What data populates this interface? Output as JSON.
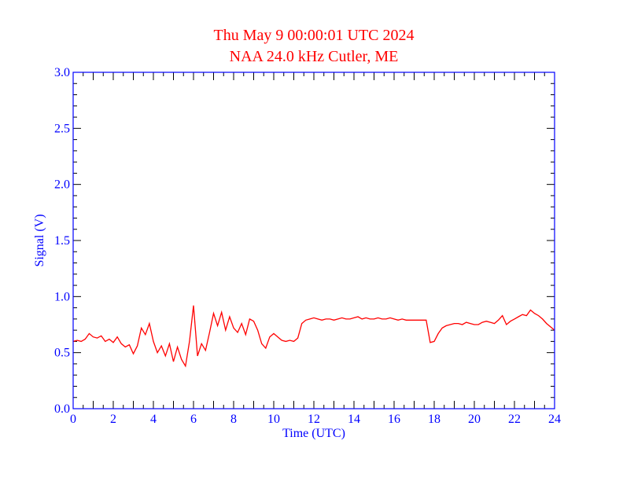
{
  "chart_data": {
    "type": "line",
    "title": "Thu May 9 00:00:01 UTC 2024",
    "subtitle": "NAA 24.0 kHz Cutler, ME",
    "xlabel": "Time (UTC)",
    "ylabel": "Signal (V)",
    "xlim": [
      0,
      24
    ],
    "ylim": [
      0,
      3.0
    ],
    "x_ticks": [
      "0",
      "2",
      "4",
      "6",
      "8",
      "10",
      "12",
      "14",
      "16",
      "18",
      "20",
      "22",
      "24"
    ],
    "y_ticks": [
      "0.0",
      "0.5",
      "1.0",
      "1.5",
      "2.0",
      "2.5",
      "3.0"
    ],
    "grid": false,
    "series": [
      {
        "name": "NAA 24.0 kHz",
        "color": "#ff0000",
        "x_start": 0,
        "x_step": 0.2,
        "values": [
          0.6,
          0.61,
          0.6,
          0.62,
          0.67,
          0.64,
          0.63,
          0.65,
          0.6,
          0.62,
          0.59,
          0.64,
          0.58,
          0.55,
          0.57,
          0.49,
          0.56,
          0.72,
          0.66,
          0.76,
          0.6,
          0.5,
          0.56,
          0.47,
          0.58,
          0.42,
          0.55,
          0.44,
          0.38,
          0.6,
          0.92,
          0.47,
          0.58,
          0.52,
          0.68,
          0.85,
          0.74,
          0.86,
          0.7,
          0.82,
          0.72,
          0.68,
          0.76,
          0.66,
          0.8,
          0.78,
          0.7,
          0.58,
          0.54,
          0.64,
          0.67,
          0.64,
          0.61,
          0.6,
          0.61,
          0.6,
          0.63,
          0.76,
          0.79,
          0.8,
          0.81,
          0.8,
          0.79,
          0.8,
          0.8,
          0.79,
          0.8,
          0.81,
          0.8,
          0.8,
          0.81,
          0.82,
          0.8,
          0.81,
          0.8,
          0.8,
          0.81,
          0.8,
          0.8,
          0.81,
          0.8,
          0.79,
          0.8,
          0.79,
          0.79,
          0.79,
          0.79,
          0.79,
          0.79,
          0.59,
          0.6,
          0.67,
          0.72,
          0.74,
          0.75,
          0.76,
          0.76,
          0.75,
          0.77,
          0.76,
          0.75,
          0.75,
          0.77,
          0.78,
          0.77,
          0.76,
          0.79,
          0.83,
          0.75,
          0.78,
          0.8,
          0.82,
          0.84,
          0.83,
          0.88,
          0.85,
          0.83,
          0.8,
          0.76,
          0.73,
          0.7
        ]
      }
    ],
    "colors": {
      "title": "#ff0000",
      "axis": "#0000ff",
      "ticks": "#000000"
    }
  }
}
